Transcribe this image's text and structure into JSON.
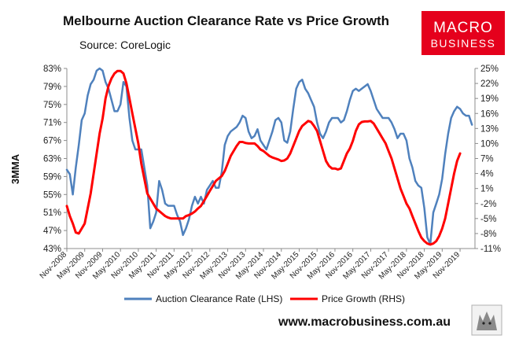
{
  "chart_data": {
    "type": "line",
    "title": "Melbourne Auction Clearance Rate vs Price Growth",
    "source": "Source: CoreLogic",
    "ylabel_left": "3MMA",
    "y_left": {
      "min": 43,
      "max": 83,
      "ticks": [
        "83%",
        "79%",
        "75%",
        "71%",
        "67%",
        "63%",
        "59%",
        "55%",
        "51%",
        "47%",
        "43%"
      ]
    },
    "y_right": {
      "min": -11,
      "max": 25,
      "ticks": [
        "25%",
        "22%",
        "19%",
        "16%",
        "13%",
        "10%",
        "7%",
        "4%",
        "1%",
        "-2%",
        "-5%",
        "-8%",
        "-11%"
      ]
    },
    "x_ticks": [
      "Nov-2008",
      "May-2009",
      "Nov-2009",
      "May-2010",
      "Nov-2010",
      "May-2011",
      "Nov-2011",
      "May-2012",
      "Nov-2012",
      "May-2013",
      "Nov-2013",
      "May-2014",
      "Nov-2014",
      "May-2015",
      "Nov-2015",
      "May-2016",
      "Nov-2016",
      "May-2017",
      "Nov-2017",
      "May-2018",
      "Nov-2018",
      "May-2019",
      "Nov-2019"
    ],
    "x_domain": {
      "start_month_index": 0,
      "end_month_index": 137,
      "tick_every_months": 6,
      "note": "month index 0 = Nov-2008"
    },
    "series": [
      {
        "name": "Auction Clearance Rate (LHS)",
        "axis": "left",
        "color": "#4f81bd",
        "points": [
          [
            0,
            60.5
          ],
          [
            1,
            59.5
          ],
          [
            2,
            55
          ],
          [
            3,
            61
          ],
          [
            4,
            66
          ],
          [
            5,
            71.5
          ],
          [
            6,
            73
          ],
          [
            7,
            77
          ],
          [
            8,
            79.5
          ],
          [
            9,
            80.5
          ],
          [
            10,
            82.5
          ],
          [
            11,
            83
          ],
          [
            12,
            82.5
          ],
          [
            13,
            80
          ],
          [
            14,
            78.5
          ],
          [
            15,
            76
          ],
          [
            16,
            73.5
          ],
          [
            17,
            73.5
          ],
          [
            18,
            75
          ],
          [
            19,
            80
          ],
          [
            20,
            79
          ],
          [
            21,
            72
          ],
          [
            22,
            67
          ],
          [
            23,
            65
          ],
          [
            24,
            65
          ],
          [
            25,
            65
          ],
          [
            26,
            61
          ],
          [
            27,
            57
          ],
          [
            28,
            47.5
          ],
          [
            29,
            49
          ],
          [
            30,
            51
          ],
          [
            31,
            58
          ],
          [
            32,
            56
          ],
          [
            33,
            53
          ],
          [
            34,
            52.5
          ],
          [
            35,
            52.5
          ],
          [
            36,
            52.5
          ],
          [
            37,
            50.5
          ],
          [
            38,
            49
          ],
          [
            39,
            46
          ],
          [
            40,
            47.5
          ],
          [
            41,
            49.5
          ],
          [
            42,
            52.5
          ],
          [
            43,
            54.5
          ],
          [
            44,
            53
          ],
          [
            45,
            54.5
          ],
          [
            46,
            53
          ],
          [
            47,
            56
          ],
          [
            48,
            57
          ],
          [
            49,
            58
          ],
          [
            50,
            56.5
          ],
          [
            51,
            56.5
          ],
          [
            52,
            60
          ],
          [
            53,
            66
          ],
          [
            54,
            68
          ],
          [
            55,
            69
          ],
          [
            56,
            69.5
          ],
          [
            57,
            70
          ],
          [
            58,
            71
          ],
          [
            59,
            72.5
          ],
          [
            60,
            72
          ],
          [
            61,
            69
          ],
          [
            62,
            67.5
          ],
          [
            63,
            68
          ],
          [
            64,
            69.5
          ],
          [
            65,
            67
          ],
          [
            66,
            66
          ],
          [
            67,
            65
          ],
          [
            68,
            67
          ],
          [
            69,
            69
          ],
          [
            70,
            71.5
          ],
          [
            71,
            72
          ],
          [
            72,
            71
          ],
          [
            73,
            67
          ],
          [
            74,
            66.5
          ],
          [
            75,
            69
          ],
          [
            76,
            74
          ],
          [
            77,
            78.5
          ],
          [
            78,
            80
          ],
          [
            79,
            80.5
          ],
          [
            80,
            78.5
          ],
          [
            81,
            77.5
          ],
          [
            82,
            76
          ],
          [
            83,
            74.5
          ],
          [
            84,
            71
          ],
          [
            85,
            68.5
          ],
          [
            86,
            67.5
          ],
          [
            87,
            69
          ],
          [
            88,
            71
          ],
          [
            89,
            72
          ],
          [
            90,
            72
          ],
          [
            91,
            72
          ],
          [
            92,
            71
          ],
          [
            93,
            71.5
          ],
          [
            94,
            73.5
          ],
          [
            95,
            76
          ],
          [
            96,
            78
          ],
          [
            97,
            78.5
          ],
          [
            98,
            78
          ],
          [
            99,
            78.5
          ],
          [
            100,
            79
          ],
          [
            101,
            79.5
          ],
          [
            102,
            78
          ],
          [
            103,
            76
          ],
          [
            104,
            74
          ],
          [
            105,
            73
          ],
          [
            106,
            72
          ],
          [
            107,
            72
          ],
          [
            108,
            72
          ],
          [
            109,
            71
          ],
          [
            110,
            69.5
          ],
          [
            111,
            67.5
          ],
          [
            112,
            68.5
          ],
          [
            113,
            68.5
          ],
          [
            114,
            67
          ],
          [
            115,
            63
          ],
          [
            116,
            61
          ],
          [
            117,
            58
          ],
          [
            118,
            57
          ],
          [
            119,
            56.5
          ],
          [
            120,
            52
          ],
          [
            121,
            45.5
          ],
          [
            122,
            44
          ],
          [
            123,
            51
          ],
          [
            124,
            53
          ],
          [
            125,
            55
          ],
          [
            126,
            58.5
          ],
          [
            127,
            64
          ],
          [
            128,
            68.5
          ],
          [
            129,
            72
          ],
          [
            130,
            73.5
          ],
          [
            131,
            74.5
          ],
          [
            132,
            74
          ],
          [
            133,
            73
          ],
          [
            134,
            72.5
          ],
          [
            135,
            72.5
          ],
          [
            136,
            70.5
          ]
        ]
      },
      {
        "name": "Price Growth (RHS)",
        "axis": "right",
        "color": "#ff0000",
        "points": [
          [
            0,
            -2.5
          ],
          [
            1,
            -4.5
          ],
          [
            2,
            -6
          ],
          [
            3,
            -7.8
          ],
          [
            4,
            -8
          ],
          [
            5,
            -7
          ],
          [
            6,
            -6
          ],
          [
            7,
            -3
          ],
          [
            8,
            0
          ],
          [
            9,
            4
          ],
          [
            10,
            8
          ],
          [
            11,
            12
          ],
          [
            12,
            15
          ],
          [
            13,
            19
          ],
          [
            14,
            21.5
          ],
          [
            15,
            23
          ],
          [
            16,
            24
          ],
          [
            17,
            24.5
          ],
          [
            18,
            24.5
          ],
          [
            19,
            24
          ],
          [
            20,
            22
          ],
          [
            21,
            19
          ],
          [
            22,
            16
          ],
          [
            23,
            13
          ],
          [
            24,
            10
          ],
          [
            25,
            6
          ],
          [
            26,
            3
          ],
          [
            27,
            0
          ],
          [
            28,
            -1
          ],
          [
            29,
            -2
          ],
          [
            30,
            -3
          ],
          [
            31,
            -3.5
          ],
          [
            32,
            -4
          ],
          [
            33,
            -4.5
          ],
          [
            34,
            -4.8
          ],
          [
            35,
            -5
          ],
          [
            36,
            -5
          ],
          [
            37,
            -5
          ],
          [
            38,
            -5
          ],
          [
            39,
            -5
          ],
          [
            40,
            -4.5
          ],
          [
            41,
            -4.3
          ],
          [
            42,
            -4
          ],
          [
            43,
            -3.6
          ],
          [
            44,
            -3
          ],
          [
            45,
            -2.5
          ],
          [
            46,
            -1.5
          ],
          [
            47,
            -0.5
          ],
          [
            48,
            0.5
          ],
          [
            49,
            1.5
          ],
          [
            50,
            2.5
          ],
          [
            51,
            3
          ],
          [
            52,
            3.5
          ],
          [
            53,
            4.5
          ],
          [
            54,
            6
          ],
          [
            55,
            7.5
          ],
          [
            56,
            8.5
          ],
          [
            57,
            9.5
          ],
          [
            58,
            10.3
          ],
          [
            59,
            10.3
          ],
          [
            60,
            10.1
          ],
          [
            61,
            10
          ],
          [
            62,
            10
          ],
          [
            63,
            10
          ],
          [
            64,
            9.5
          ],
          [
            65,
            8.8
          ],
          [
            66,
            8.5
          ],
          [
            67,
            8
          ],
          [
            68,
            7.5
          ],
          [
            69,
            7.2
          ],
          [
            70,
            7
          ],
          [
            71,
            6.8
          ],
          [
            72,
            6.5
          ],
          [
            73,
            6.6
          ],
          [
            74,
            7
          ],
          [
            75,
            8
          ],
          [
            76,
            9.5
          ],
          [
            77,
            11
          ],
          [
            78,
            12.5
          ],
          [
            79,
            13.5
          ],
          [
            80,
            14
          ],
          [
            81,
            14.5
          ],
          [
            82,
            14.3
          ],
          [
            83,
            13.5
          ],
          [
            84,
            12.5
          ],
          [
            85,
            10.5
          ],
          [
            86,
            8.5
          ],
          [
            87,
            6.5
          ],
          [
            88,
            5.5
          ],
          [
            89,
            5
          ],
          [
            90,
            5
          ],
          [
            91,
            4.8
          ],
          [
            92,
            5
          ],
          [
            93,
            6.5
          ],
          [
            94,
            8
          ],
          [
            95,
            9
          ],
          [
            96,
            10.5
          ],
          [
            97,
            12.5
          ],
          [
            98,
            13.8
          ],
          [
            99,
            14.3
          ],
          [
            100,
            14.4
          ],
          [
            101,
            14.4
          ],
          [
            102,
            14.5
          ],
          [
            103,
            14
          ],
          [
            104,
            13
          ],
          [
            105,
            12
          ],
          [
            106,
            11
          ],
          [
            107,
            10
          ],
          [
            108,
            8.5
          ],
          [
            109,
            7
          ],
          [
            110,
            5
          ],
          [
            111,
            3
          ],
          [
            112,
            1
          ],
          [
            113,
            -0.5
          ],
          [
            114,
            -2
          ],
          [
            115,
            -3
          ],
          [
            116,
            -4.5
          ],
          [
            117,
            -6
          ],
          [
            118,
            -7.5
          ],
          [
            119,
            -8.8
          ],
          [
            120,
            -9.5
          ],
          [
            121,
            -10
          ],
          [
            122,
            -10.2
          ],
          [
            123,
            -10
          ],
          [
            124,
            -9.5
          ],
          [
            125,
            -8.5
          ],
          [
            126,
            -7
          ],
          [
            127,
            -5
          ],
          [
            128,
            -2
          ],
          [
            129,
            1
          ],
          [
            130,
            4
          ],
          [
            131,
            6.5
          ],
          [
            132,
            8
          ]
        ]
      }
    ]
  },
  "legend": [
    "Auction Clearance Rate (LHS)",
    "Price Growth (RHS)"
  ],
  "brand": {
    "logo_line1": "MACRO",
    "logo_line2": "BUSINESS",
    "website": "www.macrobusiness.com.au",
    "logo_color": "#e5001c"
  }
}
